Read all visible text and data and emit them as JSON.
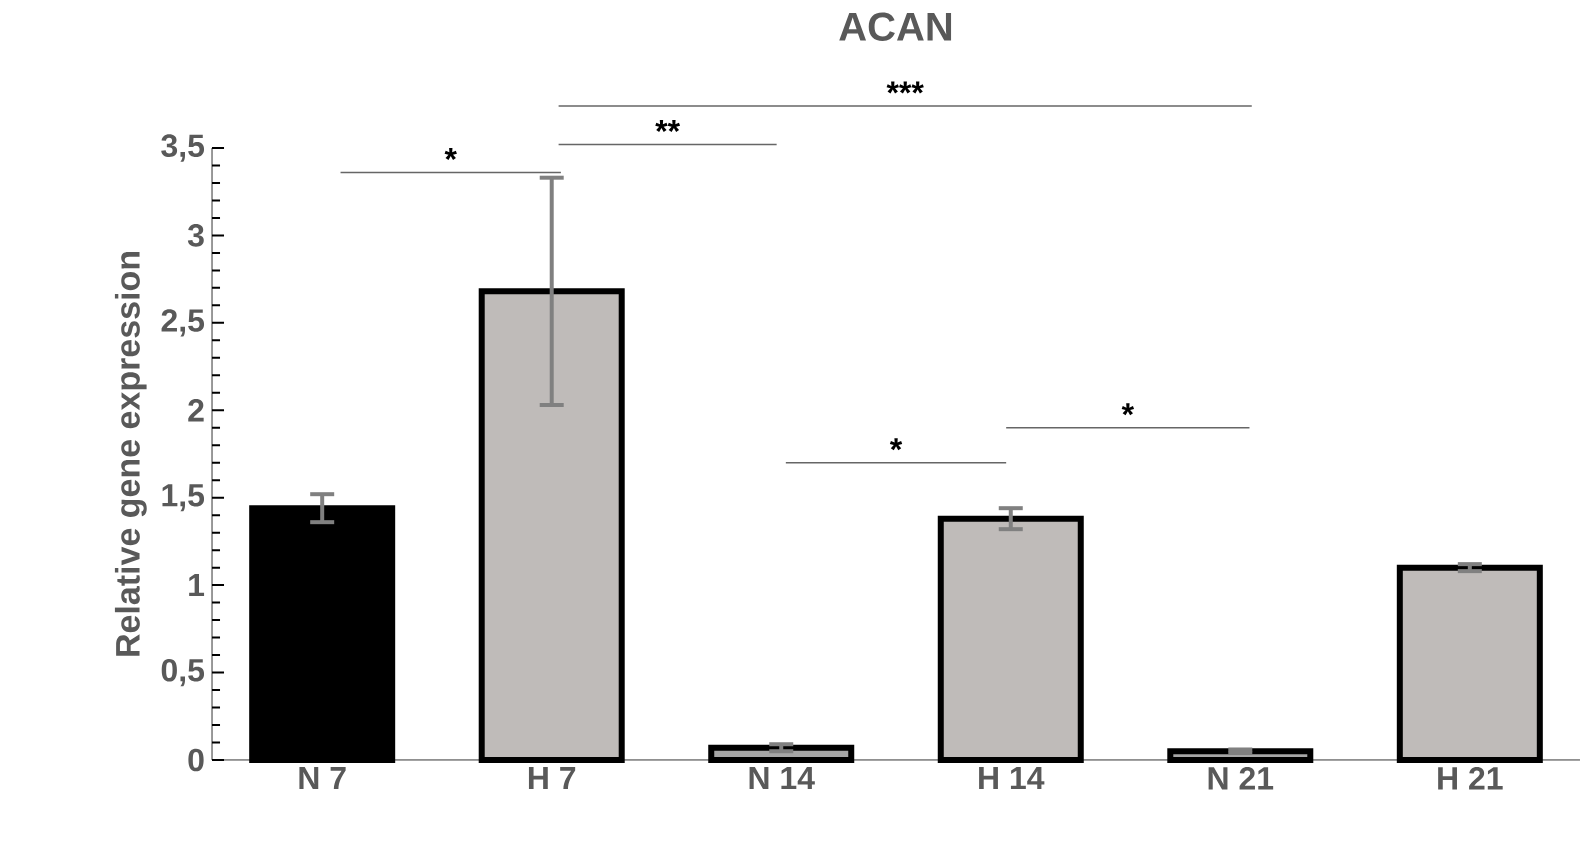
{
  "chart_data": {
    "type": "bar",
    "title": "ACAN",
    "ylabel": "Relative gene expression",
    "categories": [
      "N 7",
      "H 7",
      "N 14",
      "H 14",
      "N 21",
      "H 21"
    ],
    "values": [
      1.44,
      2.68,
      0.07,
      1.38,
      0.05,
      1.1
    ],
    "errors": [
      0.08,
      0.65,
      0.02,
      0.06,
      0.01,
      0.02
    ],
    "colors": [
      "#000000",
      "#bfbbb9",
      "#a6a6a6",
      "#bfbbb9",
      "#a6a6a6",
      "#bfbbb9"
    ],
    "ylim": [
      0,
      3.5
    ],
    "yticks": [
      0,
      {
        "value": 0.5,
        "label": "0,5"
      },
      1,
      {
        "value": 1.5,
        "label": "1,5"
      },
      2,
      {
        "value": 2.5,
        "label": "2,5"
      },
      3,
      {
        "value": 3.5,
        "label": "3,5"
      }
    ],
    "annotations": [
      "*",
      "**",
      "***",
      "*",
      "*"
    ],
    "grid": false
  }
}
